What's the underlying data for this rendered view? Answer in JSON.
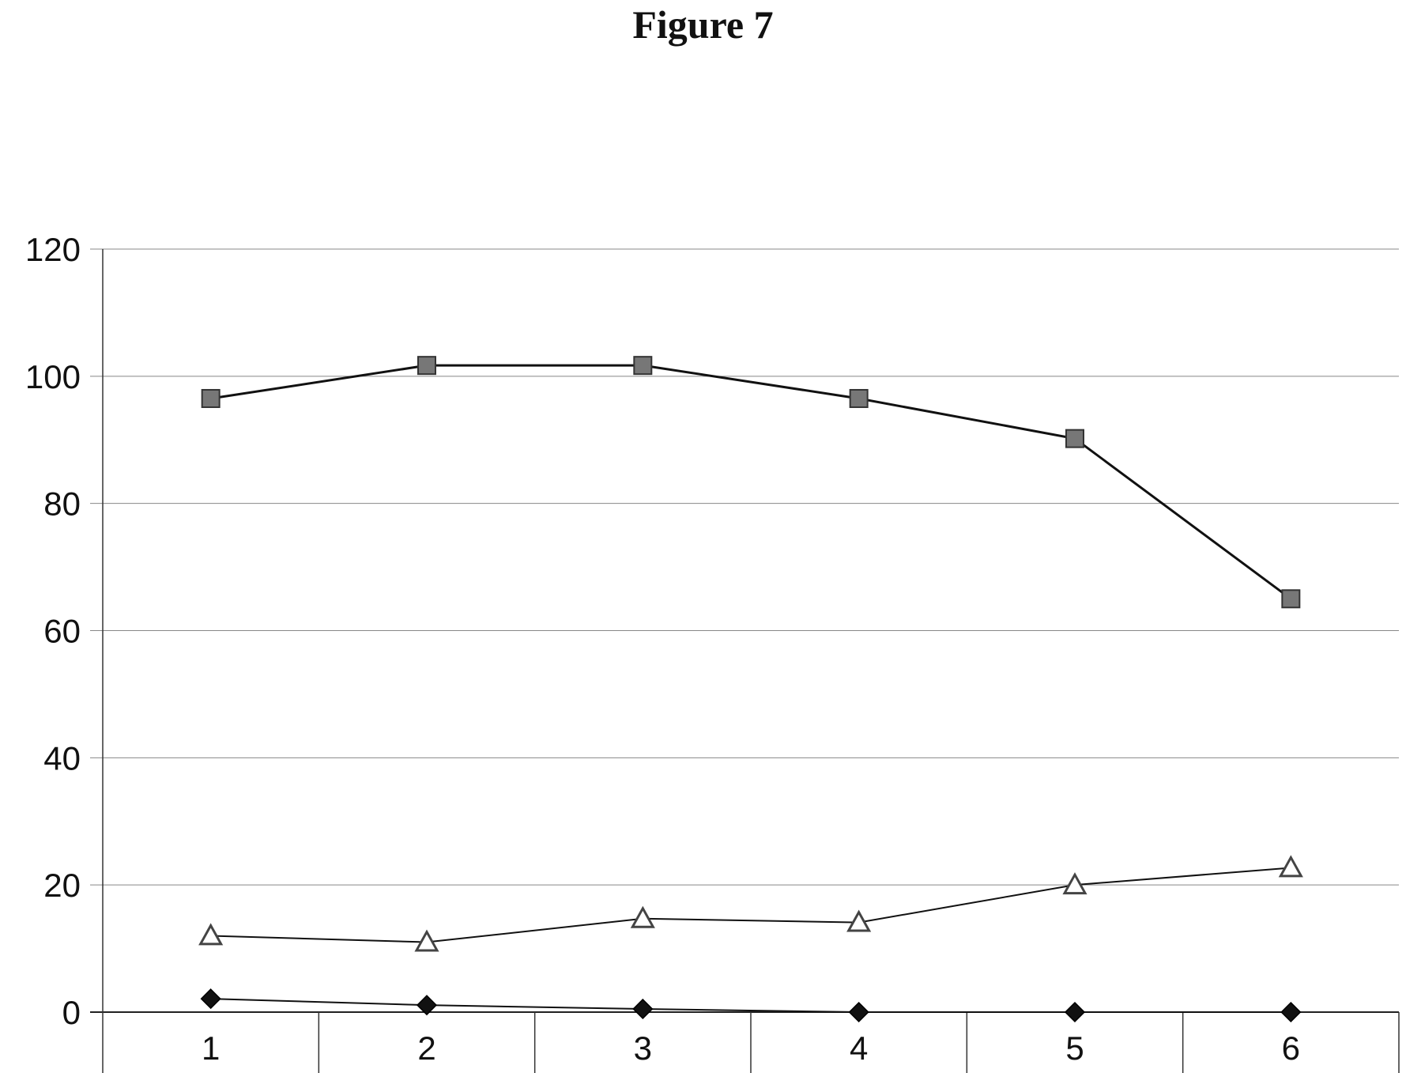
{
  "figure_title": "Figure 7",
  "chart_data": {
    "type": "line",
    "title": "",
    "xlabel": "",
    "ylabel": "",
    "categories": [
      "1",
      "2",
      "3",
      "4",
      "5",
      "6"
    ],
    "ylim": [
      0,
      120
    ],
    "yticks": [
      "0",
      "20",
      "40",
      "60",
      "80",
      "100",
      "120"
    ],
    "grid": true,
    "series": [
      {
        "marker": "square",
        "color": "#777777",
        "values": [
          96.5,
          101.7,
          101.7,
          96.5,
          90.2,
          65.0
        ]
      },
      {
        "marker": "triangle",
        "color": "#ffffff",
        "values": [
          12.0,
          11.0,
          14.7,
          14.1,
          20.0,
          22.7
        ]
      },
      {
        "marker": "diamond",
        "color": "#111111",
        "values": [
          2.1,
          1.1,
          0.5,
          0.0,
          0.0,
          0.0
        ]
      }
    ]
  }
}
